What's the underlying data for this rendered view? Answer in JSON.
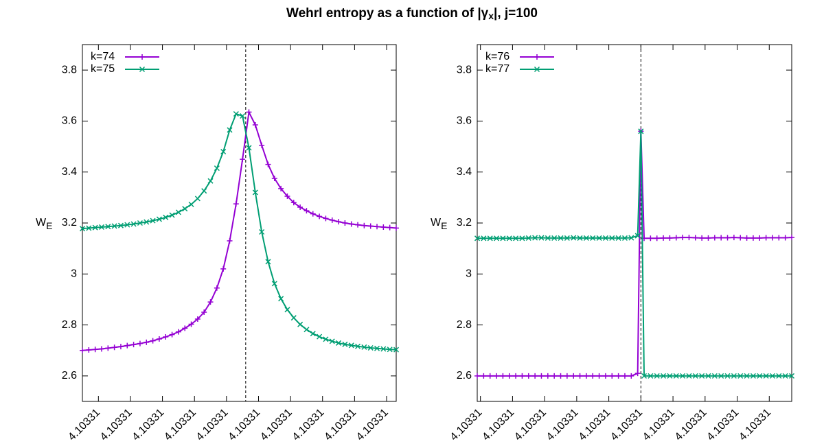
{
  "title": {
    "text": "Wehrl entropy as a function of |γ",
    "subscript": "x",
    "tail": "|,  j=100"
  },
  "chart_data": [
    {
      "type": "line",
      "ylabel": "W",
      "ylabel_subscript": "E",
      "legend": "top-left",
      "vline": 4.1033098,
      "xlim": [
        4.1033047,
        4.1033145
      ],
      "ylim": [
        2.5,
        3.9
      ],
      "yticks": [
        2.6,
        2.8,
        3,
        3.2,
        3.4,
        3.6,
        3.8
      ],
      "xticks": [
        {
          "value": 4.1033052,
          "label": "4.10331"
        },
        {
          "value": 4.1033062,
          "label": "4.10331"
        },
        {
          "value": 4.1033072,
          "label": "4.10331"
        },
        {
          "value": 4.1033082,
          "label": "4.10331"
        },
        {
          "value": 4.1033092,
          "label": "4.10331"
        },
        {
          "value": 4.1033102,
          "label": "4.10331"
        },
        {
          "value": 4.1033112,
          "label": "4.10331"
        },
        {
          "value": 4.1033122,
          "label": "4.10331"
        },
        {
          "value": 4.1033132,
          "label": "4.10331"
        },
        {
          "value": 4.1033142,
          "label": "4.10331"
        }
      ],
      "x": [
        4.1033047,
        4.1033049,
        4.1033051,
        4.1033053,
        4.1033055,
        4.1033057,
        4.1033059,
        4.1033061,
        4.1033063,
        4.1033065,
        4.1033067,
        4.1033069,
        4.1033071,
        4.1033073,
        4.1033075,
        4.1033077,
        4.1033079,
        4.1033081,
        4.1033083,
        4.1033085,
        4.1033087,
        4.1033089,
        4.1033091,
        4.1033093,
        4.1033095,
        4.1033097,
        4.1033099,
        4.1033101,
        4.1033103,
        4.1033105,
        4.1033107,
        4.1033109,
        4.1033111,
        4.1033113,
        4.1033115,
        4.1033117,
        4.1033119,
        4.1033121,
        4.1033123,
        4.1033125,
        4.1033127,
        4.1033129,
        4.1033131,
        4.1033133,
        4.1033135,
        4.1033137,
        4.1033139,
        4.1033141,
        4.1033143,
        4.1033145
      ],
      "series": [
        {
          "name": "k=74",
          "color": "#9400d3",
          "marker": "plus",
          "values": [
            2.7,
            2.702,
            2.704,
            2.706,
            2.709,
            2.712,
            2.715,
            2.719,
            2.723,
            2.727,
            2.732,
            2.738,
            2.745,
            2.753,
            2.762,
            2.773,
            2.787,
            2.803,
            2.823,
            2.85,
            2.89,
            2.945,
            3.02,
            3.13,
            3.275,
            3.45,
            3.635,
            3.585,
            3.505,
            3.43,
            3.375,
            3.335,
            3.305,
            3.28,
            3.262,
            3.248,
            3.236,
            3.226,
            3.218,
            3.211,
            3.205,
            3.2,
            3.196,
            3.193,
            3.19,
            3.188,
            3.186,
            3.184,
            3.182,
            3.18
          ]
        },
        {
          "name": "k=75",
          "color": "#009e73",
          "marker": "cross",
          "values": [
            3.178,
            3.18,
            3.182,
            3.184,
            3.186,
            3.188,
            3.19,
            3.193,
            3.196,
            3.2,
            3.204,
            3.209,
            3.215,
            3.222,
            3.231,
            3.242,
            3.256,
            3.273,
            3.296,
            3.326,
            3.365,
            3.415,
            3.48,
            3.565,
            3.628,
            3.62,
            3.495,
            3.32,
            3.165,
            3.048,
            2.962,
            2.903,
            2.86,
            2.828,
            2.802,
            2.782,
            2.766,
            2.754,
            2.744,
            2.736,
            2.729,
            2.724,
            2.72,
            2.716,
            2.713,
            2.71,
            2.708,
            2.706,
            2.704,
            2.703
          ]
        }
      ]
    },
    {
      "type": "line",
      "ylabel": "W",
      "ylabel_subscript": "E",
      "legend": "top-left",
      "vline": 4.1033102,
      "xlim": [
        4.1033051,
        4.1033149
      ],
      "ylim": [
        2.5,
        3.9
      ],
      "yticks": [
        2.6,
        2.8,
        3,
        3.2,
        3.4,
        3.6,
        3.8
      ],
      "xticks": [
        {
          "value": 4.1033052,
          "label": "4.10331"
        },
        {
          "value": 4.1033062,
          "label": "4.10331"
        },
        {
          "value": 4.1033072,
          "label": "4.10331"
        },
        {
          "value": 4.1033082,
          "label": "4.10331"
        },
        {
          "value": 4.1033092,
          "label": "4.10331"
        },
        {
          "value": 4.1033102,
          "label": "4.10331"
        },
        {
          "value": 4.1033112,
          "label": "4.10331"
        },
        {
          "value": 4.1033122,
          "label": "4.10331"
        },
        {
          "value": 4.1033132,
          "label": "4.10331"
        },
        {
          "value": 4.1033142,
          "label": "4.10331"
        }
      ],
      "x": [
        4.1033051,
        4.1033053,
        4.1033055,
        4.1033057,
        4.1033059,
        4.1033061,
        4.1033063,
        4.1033065,
        4.1033067,
        4.1033069,
        4.1033071,
        4.1033073,
        4.1033075,
        4.1033077,
        4.1033079,
        4.1033081,
        4.1033083,
        4.1033085,
        4.1033087,
        4.1033089,
        4.1033091,
        4.1033093,
        4.1033095,
        4.1033097,
        4.1033099,
        4.1033101,
        4.1033102,
        4.1033103,
        4.1033105,
        4.1033107,
        4.1033109,
        4.1033111,
        4.1033113,
        4.1033115,
        4.1033117,
        4.1033119,
        4.1033121,
        4.1033123,
        4.1033125,
        4.1033127,
        4.1033129,
        4.1033131,
        4.1033133,
        4.1033135,
        4.1033137,
        4.1033139,
        4.1033141,
        4.1033143,
        4.1033145,
        4.1033147,
        4.1033149
      ],
      "series": [
        {
          "name": "k=76",
          "color": "#9400d3",
          "marker": "plus",
          "values": [
            2.6,
            2.6,
            2.6,
            2.6,
            2.6,
            2.6,
            2.6,
            2.6,
            2.6,
            2.6,
            2.6,
            2.6,
            2.6,
            2.6,
            2.6,
            2.6,
            2.6,
            2.6,
            2.6,
            2.6,
            2.6,
            2.6,
            2.6,
            2.6,
            2.6,
            2.61,
            3.56,
            3.14,
            3.14,
            3.14,
            3.141,
            3.141,
            3.142,
            3.143,
            3.143,
            3.142,
            3.141,
            3.141,
            3.142,
            3.142,
            3.142,
            3.143,
            3.142,
            3.141,
            3.141,
            3.141,
            3.142,
            3.142,
            3.142,
            3.142,
            3.143
          ]
        },
        {
          "name": "k=77",
          "color": "#009e73",
          "marker": "cross",
          "values": [
            3.14,
            3.14,
            3.14,
            3.14,
            3.14,
            3.14,
            3.14,
            3.14,
            3.141,
            3.142,
            3.142,
            3.141,
            3.141,
            3.141,
            3.141,
            3.142,
            3.141,
            3.141,
            3.141,
            3.141,
            3.141,
            3.141,
            3.141,
            3.141,
            3.142,
            3.15,
            3.56,
            2.6,
            2.6,
            2.6,
            2.6,
            2.6,
            2.6,
            2.6,
            2.6,
            2.6,
            2.6,
            2.6,
            2.6,
            2.6,
            2.6,
            2.6,
            2.6,
            2.6,
            2.6,
            2.6,
            2.6,
            2.6,
            2.6,
            2.6,
            2.6
          ]
        }
      ]
    }
  ]
}
